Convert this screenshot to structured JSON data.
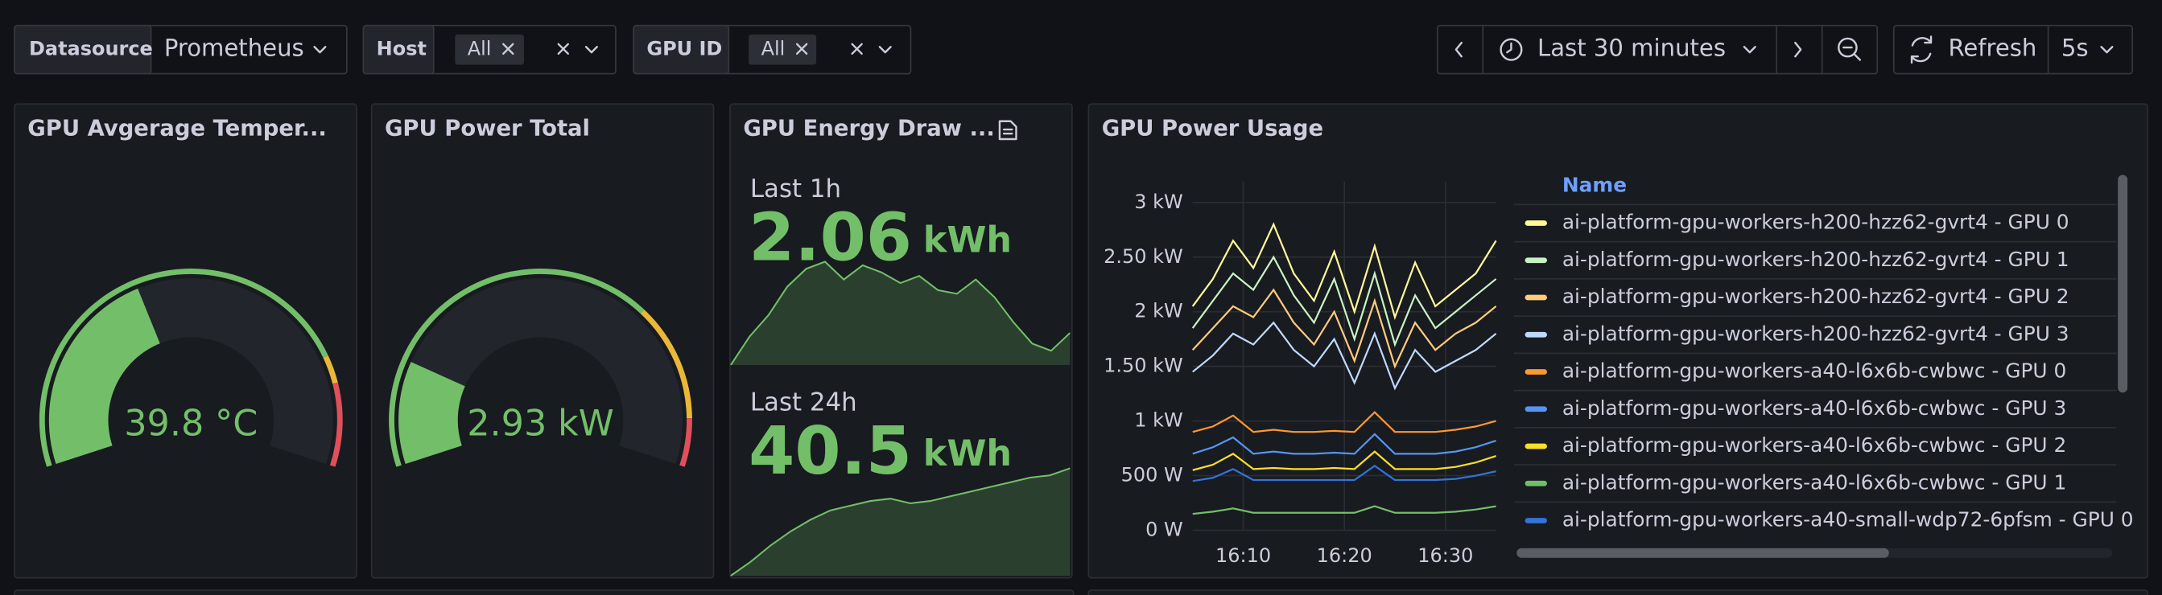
{
  "toolbar": {
    "datasource": {
      "label": "Datasource",
      "value": "Prometheus"
    },
    "host": {
      "label": "Host",
      "value": "All"
    },
    "gpu_id": {
      "label": "GPU ID",
      "value": "All"
    },
    "time_range": "Last 30 minutes",
    "refresh": "Refresh",
    "refresh_interval": "5s"
  },
  "panels": [
    {
      "type": "gauge",
      "title": "GPU Avgerage Temper...",
      "value": 39.8,
      "unit": "°C",
      "min": 0,
      "max": 100,
      "thresholds": [
        80,
        85
      ],
      "colors": [
        "#73BF69",
        "#EAB839",
        "#E0505A"
      ]
    },
    {
      "type": "gauge",
      "title": "GPU Power Total",
      "value": 2.93,
      "unit": "kW",
      "min": 0,
      "max": 15,
      "thresholds": [
        10.5,
        13.7
      ],
      "colors": [
        "#73BF69",
        "#EAB839",
        "#E0505A"
      ]
    },
    {
      "type": "stat",
      "title": "GPU Energy Draw ...",
      "color": "#73BF69",
      "stats": [
        {
          "label": "Last 1h",
          "value": 2.06,
          "unit": "kWh",
          "sparkline": [
            1.2,
            2.0,
            2.6,
            3.4,
            3.9,
            4.1,
            3.6,
            4.0,
            3.8,
            3.5,
            3.7,
            3.3,
            3.2,
            3.6,
            3.1,
            2.4,
            1.8,
            1.6,
            2.1
          ]
        },
        {
          "label": "Last 24h",
          "value": 40.5,
          "unit": "kWh",
          "sparkline": [
            0.2,
            0.8,
            1.5,
            2.1,
            2.6,
            3.0,
            3.2,
            3.4,
            3.5,
            3.3,
            3.4,
            3.6,
            3.8,
            4.0,
            4.2,
            4.4,
            4.5,
            4.8
          ]
        }
      ]
    },
    {
      "type": "line",
      "title": "GPU Power Usage",
      "legend_title": "Name",
      "grid": true,
      "x": [
        "16:05",
        "16:07",
        "16:09",
        "16:11",
        "16:13",
        "16:15",
        "16:17",
        "16:19",
        "16:21",
        "16:23",
        "16:25",
        "16:27",
        "16:29",
        "16:31",
        "16:33",
        "16:35"
      ],
      "xlim": [
        "16:05",
        "16:35"
      ],
      "xticks": [
        "16:10",
        "16:20",
        "16:30"
      ],
      "ylim": [
        0,
        3000
      ],
      "yticks": [
        {
          "value": 0,
          "label": "0 W"
        },
        {
          "value": 500,
          "label": "500 W"
        },
        {
          "value": 1000,
          "label": "1 kW"
        },
        {
          "value": 1500,
          "label": "1.50 kW"
        },
        {
          "value": 2000,
          "label": "2 kW"
        },
        {
          "value": 2500,
          "label": "2.50 kW"
        },
        {
          "value": 3000,
          "label": "3 kW"
        }
      ],
      "series": [
        {
          "name": "ai-platform-gpu-workers-h200-hzz62-gvrt4 - GPU 0",
          "color": "#FFF899",
          "values": [
            2050,
            2300,
            2650,
            2400,
            2800,
            2350,
            2100,
            2550,
            2000,
            2600,
            1950,
            2450,
            2050,
            2200,
            2350,
            2650
          ]
        },
        {
          "name": "ai-platform-gpu-workers-h200-hzz62-gvrt4 - GPU 1",
          "color": "#C8F2C2",
          "values": [
            1850,
            2100,
            2350,
            2200,
            2500,
            2150,
            1900,
            2300,
            1750,
            2350,
            1700,
            2150,
            1850,
            2000,
            2150,
            2300
          ]
        },
        {
          "name": "ai-platform-gpu-workers-h200-hzz62-gvrt4 - GPU 2",
          "color": "#FFCB7D",
          "values": [
            1650,
            1850,
            2050,
            1950,
            2200,
            1900,
            1700,
            2000,
            1550,
            2100,
            1500,
            1900,
            1650,
            1800,
            1900,
            2050
          ]
        },
        {
          "name": "ai-platform-gpu-workers-h200-hzz62-gvrt4 - GPU 3",
          "color": "#C0D8FF",
          "values": [
            1450,
            1600,
            1800,
            1700,
            1900,
            1650,
            1500,
            1750,
            1350,
            1800,
            1300,
            1650,
            1450,
            1550,
            1650,
            1800
          ]
        },
        {
          "name": "ai-platform-gpu-workers-a40-l6x6b-cwbwc - GPU 0",
          "color": "#FF9830",
          "values": [
            900,
            950,
            1050,
            900,
            920,
            900,
            900,
            910,
            900,
            1080,
            900,
            900,
            900,
            920,
            950,
            1000
          ]
        },
        {
          "name": "ai-platform-gpu-workers-a40-l6x6b-cwbwc - GPU 3",
          "color": "#5794F2",
          "values": [
            700,
            760,
            850,
            700,
            720,
            700,
            700,
            710,
            700,
            880,
            700,
            700,
            700,
            720,
            760,
            820
          ]
        },
        {
          "name": "ai-platform-gpu-workers-a40-l6x6b-cwbwc - GPU 2",
          "color": "#FADE2A",
          "values": [
            550,
            600,
            700,
            560,
            570,
            560,
            560,
            570,
            560,
            720,
            560,
            560,
            560,
            580,
            620,
            680
          ]
        },
        {
          "name": "ai-platform-gpu-workers-a40-l6x6b-cwbwc - GPU 1",
          "color": "#73BF69",
          "values": [
            150,
            170,
            200,
            160,
            160,
            160,
            160,
            160,
            160,
            220,
            160,
            160,
            160,
            170,
            190,
            220
          ]
        },
        {
          "name": "ai-platform-gpu-workers-a40-small-wdp72-6pfsm - GPU 0",
          "color": "#3274D9",
          "values": [
            450,
            480,
            560,
            460,
            460,
            460,
            460,
            460,
            460,
            590,
            460,
            460,
            460,
            470,
            500,
            540
          ]
        }
      ]
    }
  ]
}
